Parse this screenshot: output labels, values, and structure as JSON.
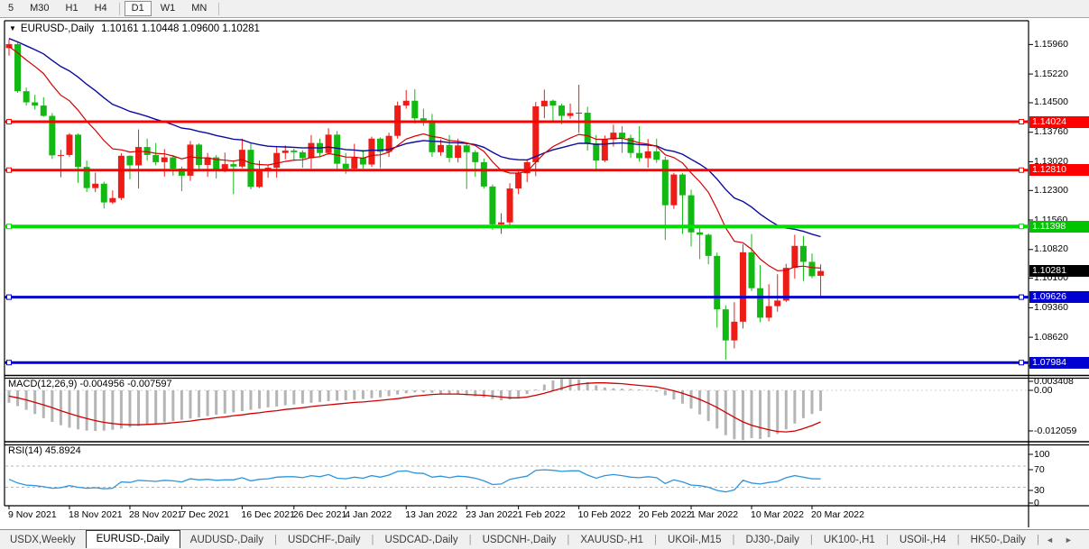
{
  "toolbar": {
    "timeframes": [
      {
        "label": "5",
        "active": false
      },
      {
        "label": "M30",
        "active": false
      },
      {
        "label": "H1",
        "active": false
      },
      {
        "label": "H4",
        "active": false
      },
      {
        "label": "D1",
        "active": true
      },
      {
        "label": "W1",
        "active": false
      },
      {
        "label": "MN",
        "active": false
      }
    ]
  },
  "chart_data": {
    "type": "candlestick",
    "symbol_title": "EURUSD-,Daily",
    "ohlc_text": "1.10161 1.10448 1.09600 1.10281",
    "colors": {
      "bull": "#ee1c16",
      "bear": "#12b912",
      "ma_fast": "#d40000",
      "ma_slow": "#0b0b9e",
      "hline_red": "#ff0000",
      "hline_green": "#00dd00",
      "hline_blue": "#0000d0",
      "macd_hist": "#b5b5b5",
      "macd_signal": "#d00000",
      "rsi_line": "#2e95dd",
      "level_dash": "#b5b5b5"
    },
    "candles": [
      [
        1.1587,
        1.1609,
        1.1568,
        1.1597
      ],
      [
        1.1597,
        1.1601,
        1.1475,
        1.1479
      ],
      [
        1.1479,
        1.1488,
        1.1443,
        1.1451
      ],
      [
        1.1451,
        1.147,
        1.1433,
        1.1443
      ],
      [
        1.1443,
        1.1464,
        1.1415,
        1.1417
      ],
      [
        1.1417,
        1.1424,
        1.1309,
        1.1318
      ],
      [
        1.1318,
        1.1332,
        1.1263,
        1.1319
      ],
      [
        1.1319,
        1.1374,
        1.1314,
        1.137
      ],
      [
        1.137,
        1.1373,
        1.1249,
        1.1289
      ],
      [
        1.1289,
        1.1305,
        1.1226,
        1.1236
      ],
      [
        1.1236,
        1.1275,
        1.1226,
        1.1247
      ],
      [
        1.1247,
        1.1252,
        1.1185,
        1.12
      ],
      [
        1.12,
        1.123,
        1.1196,
        1.1211
      ],
      [
        1.1211,
        1.1323,
        1.1206,
        1.1317
      ],
      [
        1.1317,
        1.1318,
        1.1258,
        1.1293
      ],
      [
        1.1293,
        1.1383,
        1.1235,
        1.1339
      ],
      [
        1.1339,
        1.136,
        1.1305,
        1.1319
      ],
      [
        1.1319,
        1.1349,
        1.1293,
        1.1301
      ],
      [
        1.1301,
        1.1334,
        1.1265,
        1.1313
      ],
      [
        1.1313,
        1.1319,
        1.1267,
        1.1285
      ],
      [
        1.1285,
        1.129,
        1.1228,
        1.1267
      ],
      [
        1.1267,
        1.1354,
        1.1254,
        1.1345
      ],
      [
        1.1345,
        1.1348,
        1.128,
        1.1294
      ],
      [
        1.1294,
        1.1324,
        1.1264,
        1.1313
      ],
      [
        1.1313,
        1.1319,
        1.126,
        1.1283
      ],
      [
        1.1283,
        1.1325,
        1.1276,
        1.1296
      ],
      [
        1.1296,
        1.1303,
        1.1221,
        1.129
      ],
      [
        1.129,
        1.136,
        1.1286,
        1.1332
      ],
      [
        1.1332,
        1.1349,
        1.1233,
        1.1239
      ],
      [
        1.1239,
        1.1305,
        1.1236,
        1.1278
      ],
      [
        1.1278,
        1.1295,
        1.1262,
        1.1287
      ],
      [
        1.1287,
        1.1342,
        1.1262,
        1.1324
      ],
      [
        1.1324,
        1.1343,
        1.1308,
        1.133
      ],
      [
        1.133,
        1.1335,
        1.1304,
        1.1326
      ],
      [
        1.1326,
        1.1331,
        1.1287,
        1.1311
      ],
      [
        1.1311,
        1.1369,
        1.1285,
        1.1349
      ],
      [
        1.1349,
        1.136,
        1.1316,
        1.1324
      ],
      [
        1.1324,
        1.1386,
        1.132,
        1.137
      ],
      [
        1.137,
        1.1379,
        1.1279,
        1.1297
      ],
      [
        1.1297,
        1.1324,
        1.1272,
        1.1285
      ],
      [
        1.1285,
        1.1347,
        1.1281,
        1.1312
      ],
      [
        1.1312,
        1.1332,
        1.1285,
        1.1295
      ],
      [
        1.1295,
        1.1365,
        1.1289,
        1.136
      ],
      [
        1.136,
        1.1363,
        1.1286,
        1.1327
      ],
      [
        1.1327,
        1.1375,
        1.1314,
        1.1367
      ],
      [
        1.1367,
        1.1453,
        1.136,
        1.1443
      ],
      [
        1.1443,
        1.1482,
        1.1435,
        1.1455
      ],
      [
        1.1455,
        1.1484,
        1.1398,
        1.1411
      ],
      [
        1.1411,
        1.1435,
        1.1392,
        1.1406
      ],
      [
        1.1406,
        1.1422,
        1.1314,
        1.1326
      ],
      [
        1.1326,
        1.1358,
        1.1317,
        1.1344
      ],
      [
        1.1344,
        1.1369,
        1.1301,
        1.1312
      ],
      [
        1.1312,
        1.136,
        1.13,
        1.1343
      ],
      [
        1.1343,
        1.1349,
        1.1234,
        1.1326
      ],
      [
        1.1326,
        1.1331,
        1.1264,
        1.1301
      ],
      [
        1.1301,
        1.131,
        1.1235,
        1.124
      ],
      [
        1.124,
        1.1245,
        1.1131,
        1.1145
      ],
      [
        1.1145,
        1.1173,
        1.1121,
        1.115
      ],
      [
        1.115,
        1.1248,
        1.1135,
        1.1235
      ],
      [
        1.1235,
        1.1279,
        1.1221,
        1.1273
      ],
      [
        1.1273,
        1.1305,
        1.1251,
        1.1301
      ],
      [
        1.1301,
        1.1452,
        1.1266,
        1.1441
      ],
      [
        1.1441,
        1.1483,
        1.1411,
        1.1455
      ],
      [
        1.1455,
        1.1458,
        1.14,
        1.1443
      ],
      [
        1.1443,
        1.1448,
        1.1396,
        1.1417
      ],
      [
        1.1417,
        1.1448,
        1.141,
        1.1424
      ],
      [
        1.1424,
        1.1495,
        1.1375,
        1.1425
      ],
      [
        1.1425,
        1.144,
        1.133,
        1.1348
      ],
      [
        1.1348,
        1.1369,
        1.128,
        1.1305
      ],
      [
        1.1305,
        1.1368,
        1.1301,
        1.1358
      ],
      [
        1.1358,
        1.1395,
        1.134,
        1.1375
      ],
      [
        1.1375,
        1.1391,
        1.1324,
        1.1362
      ],
      [
        1.1362,
        1.137,
        1.1312,
        1.1324
      ],
      [
        1.1324,
        1.1391,
        1.1302,
        1.1311
      ],
      [
        1.1311,
        1.1359,
        1.1287,
        1.1328
      ],
      [
        1.1328,
        1.136,
        1.1299,
        1.1307
      ],
      [
        1.1307,
        1.1315,
        1.1106,
        1.1193
      ],
      [
        1.1193,
        1.1274,
        1.1184,
        1.127
      ],
      [
        1.127,
        1.1274,
        1.1121,
        1.1218
      ],
      [
        1.1218,
        1.1232,
        1.109,
        1.1125
      ],
      [
        1.1125,
        1.114,
        1.1058,
        1.1119
      ],
      [
        1.1119,
        1.1122,
        1.1045,
        1.1066
      ],
      [
        1.1066,
        1.1074,
        1.0886,
        1.0932
      ],
      [
        1.0932,
        1.0942,
        1.0806,
        1.0854
      ],
      [
        1.0854,
        1.095,
        1.0834,
        1.0901
      ],
      [
        1.0901,
        1.1095,
        1.0884,
        1.1075
      ],
      [
        1.1075,
        1.1121,
        1.0978,
        1.0985
      ],
      [
        1.0985,
        1.1043,
        1.09,
        1.0911
      ],
      [
        1.0911,
        1.0995,
        1.0902,
        1.094
      ],
      [
        1.094,
        1.102,
        1.0926,
        1.0954
      ],
      [
        1.0954,
        1.1046,
        1.095,
        1.1036
      ],
      [
        1.1036,
        1.1119,
        1.1009,
        1.1091
      ],
      [
        1.1091,
        1.1116,
        1.1003,
        1.1051
      ],
      [
        1.1051,
        1.1072,
        1.101,
        1.1015
      ],
      [
        1.10161,
        1.10448,
        1.096,
        1.10281
      ]
    ],
    "date_ticks": [
      {
        "label": "9 Nov 2021",
        "index": 0
      },
      {
        "label": "18 Nov 2021",
        "index": 7
      },
      {
        "label": "28 Nov 2021",
        "index": 14
      },
      {
        "label": "7 Dec 2021",
        "index": 20
      },
      {
        "label": "16 Dec 2021",
        "index": 27
      },
      {
        "label": "26 Dec 2021",
        "index": 33
      },
      {
        "label": "4 Jan 2022",
        "index": 39
      },
      {
        "label": "13 Jan 2022",
        "index": 46
      },
      {
        "label": "23 Jan 2022",
        "index": 53
      },
      {
        "label": "1 Feb 2022",
        "index": 59
      },
      {
        "label": "10 Feb 2022",
        "index": 66
      },
      {
        "label": "20 Feb 2022",
        "index": 73
      },
      {
        "label": "1 Mar 2022",
        "index": 79
      },
      {
        "label": "10 Mar 2022",
        "index": 86
      },
      {
        "label": "20 Mar 2022",
        "index": 93
      }
    ],
    "price_axis": {
      "min": 1.07673,
      "max": 1.16556,
      "ticks": [
        "1.15960",
        "1.15220",
        "1.14500",
        "1.13760",
        "1.13020",
        "1.12300",
        "1.11560",
        "1.10820",
        "1.10100",
        "1.09360",
        "1.08620",
        "1.07900"
      ],
      "tick_values": [
        1.1596,
        1.1522,
        1.145,
        1.1376,
        1.1302,
        1.123,
        1.1156,
        1.1082,
        1.101,
        1.0936,
        1.0862,
        1.079
      ]
    },
    "hlines": [
      {
        "price": 1.14024,
        "label": "1.14024",
        "color": "#ff0000",
        "width": 3
      },
      {
        "price": 1.1281,
        "label": "1.12810",
        "color": "#ff0000",
        "width": 3
      },
      {
        "price": 1.11398,
        "label": "1.11398",
        "color": "#00dd00",
        "width": 4
      },
      {
        "price": 1.09626,
        "label": "1.09626",
        "color": "#0000d0",
        "width": 3
      },
      {
        "price": 1.07984,
        "label": "1.07984",
        "color": "#0000d0",
        "width": 3
      }
    ],
    "current_price": {
      "label": "1.10281",
      "value": 1.10281,
      "bg": "#000000"
    },
    "ma_fast": {
      "period": 13,
      "seed": 1.159
    },
    "ma_slow": {
      "period": 30,
      "seed": 1.1612
    },
    "macd": {
      "label": "MACD(12,26,9) -0.004956 -0.007597",
      "axis": [
        "0.003408",
        "0.00",
        "-0.012059"
      ],
      "hist": [
        -0.003,
        -0.0038,
        -0.0047,
        -0.0057,
        -0.0067,
        -0.0076,
        -0.0084,
        -0.009,
        -0.0094,
        -0.0097,
        -0.0098,
        -0.0097,
        -0.0095,
        -0.0092,
        -0.0089,
        -0.0086,
        -0.0083,
        -0.008,
        -0.0077,
        -0.0074,
        -0.0071,
        -0.0068,
        -0.0065,
        -0.0062,
        -0.0059,
        -0.0056,
        -0.0053,
        -0.005,
        -0.0047,
        -0.0044,
        -0.0041,
        -0.0039,
        -0.0036,
        -0.0034,
        -0.0032,
        -0.003,
        -0.0028,
        -0.0026,
        -0.0025,
        -0.0024,
        -0.0023,
        -0.0021,
        -0.0019,
        -0.0017,
        -0.0014,
        -0.001,
        -0.0007,
        -0.0005,
        -0.0005,
        -0.0006,
        -0.0008,
        -0.0009,
        -0.001,
        -0.0012,
        -0.0014,
        -0.0017,
        -0.0021,
        -0.0024,
        -0.0022,
        -0.0017,
        -0.0009,
        0.0002,
        0.0014,
        0.0024,
        0.0029,
        0.003,
        0.0026,
        0.002,
        0.0012,
        0.0007,
        0.0005,
        0.0004,
        0.0003,
        0.0002,
        0.0001,
        -0.0003,
        -0.0012,
        -0.0022,
        -0.0032,
        -0.0044,
        -0.0058,
        -0.0074,
        -0.0092,
        -0.0108,
        -0.0118,
        -0.012,
        -0.0115,
        -0.0117,
        -0.0113,
        -0.0105,
        -0.0094,
        -0.008,
        -0.0067,
        -0.0057,
        -0.004956
      ],
      "signal": [
        -0.0014,
        -0.0018,
        -0.0023,
        -0.0029,
        -0.0035,
        -0.0042,
        -0.0049,
        -0.0056,
        -0.0062,
        -0.0068,
        -0.0073,
        -0.0077,
        -0.008,
        -0.0082,
        -0.0083,
        -0.0083,
        -0.0082,
        -0.0081,
        -0.008,
        -0.0078,
        -0.0076,
        -0.0074,
        -0.0071,
        -0.0069,
        -0.0066,
        -0.0064,
        -0.0061,
        -0.0059,
        -0.0056,
        -0.0054,
        -0.0051,
        -0.0049,
        -0.0046,
        -0.0044,
        -0.0042,
        -0.0039,
        -0.0037,
        -0.0035,
        -0.0033,
        -0.0031,
        -0.0029,
        -0.0028,
        -0.0026,
        -0.0024,
        -0.0022,
        -0.002,
        -0.0017,
        -0.0014,
        -0.0012,
        -0.001,
        -0.0009,
        -0.0009,
        -0.0009,
        -0.001,
        -0.0011,
        -0.0012,
        -0.0014,
        -0.0016,
        -0.0018,
        -0.0018,
        -0.0016,
        -0.0012,
        -0.0007,
        -0.0001,
        0.0005,
        0.0011,
        0.0015,
        0.0017,
        0.0018,
        0.0018,
        0.0017,
        0.0016,
        0.0014,
        0.0012,
        0.001,
        0.0008,
        0.0004,
        -0.0001,
        -0.0007,
        -0.0014,
        -0.0022,
        -0.0031,
        -0.0041,
        -0.0053,
        -0.0065,
        -0.0076,
        -0.0084,
        -0.009,
        -0.0095,
        -0.0099,
        -0.01,
        -0.0098,
        -0.0092,
        -0.0085,
        -0.007597
      ]
    },
    "rsi": {
      "label": "RSI(14) 45.8924",
      "axis": [
        "100",
        "70",
        "30",
        "0"
      ],
      "levels": [
        70,
        30
      ],
      "values": [
        45,
        38,
        34,
        33,
        31,
        28,
        29,
        33,
        30,
        28,
        29,
        27,
        28,
        40,
        39,
        43,
        42,
        41,
        43,
        42,
        40,
        46,
        44,
        45,
        43,
        44,
        44,
        48,
        42,
        45,
        46,
        49,
        50,
        50,
        48,
        52,
        50,
        54,
        47,
        46,
        49,
        47,
        52,
        49,
        53,
        60,
        61,
        57,
        56,
        49,
        51,
        48,
        51,
        50,
        47,
        42,
        35,
        36,
        45,
        48,
        51,
        62,
        63,
        62,
        60,
        61,
        61,
        53,
        47,
        52,
        54,
        52,
        49,
        48,
        50,
        48,
        37,
        44,
        40,
        34,
        33,
        30,
        24,
        21,
        25,
        43,
        38,
        36,
        39,
        41,
        48,
        52,
        49,
        46,
        45.89
      ]
    }
  },
  "tabs": {
    "items": [
      {
        "label": "USDX,Weekly",
        "active": false
      },
      {
        "label": "EURUSD-,Daily",
        "active": true
      },
      {
        "label": "AUDUSD-,Daily",
        "active": false
      },
      {
        "label": "USDCHF-,Daily",
        "active": false
      },
      {
        "label": "USDCAD-,Daily",
        "active": false
      },
      {
        "label": "USDCNH-,Daily",
        "active": false
      },
      {
        "label": "XAUUSD-,H1",
        "active": false
      },
      {
        "label": "UKOil-,M15",
        "active": false
      },
      {
        "label": "DJ30-,Daily",
        "active": false
      },
      {
        "label": "UK100-,H1",
        "active": false
      },
      {
        "label": "USOil-,H4",
        "active": false
      },
      {
        "label": "HK50-,Daily",
        "active": false
      }
    ],
    "scroll_left_icon": "◄",
    "scroll_right_icon": "►"
  }
}
